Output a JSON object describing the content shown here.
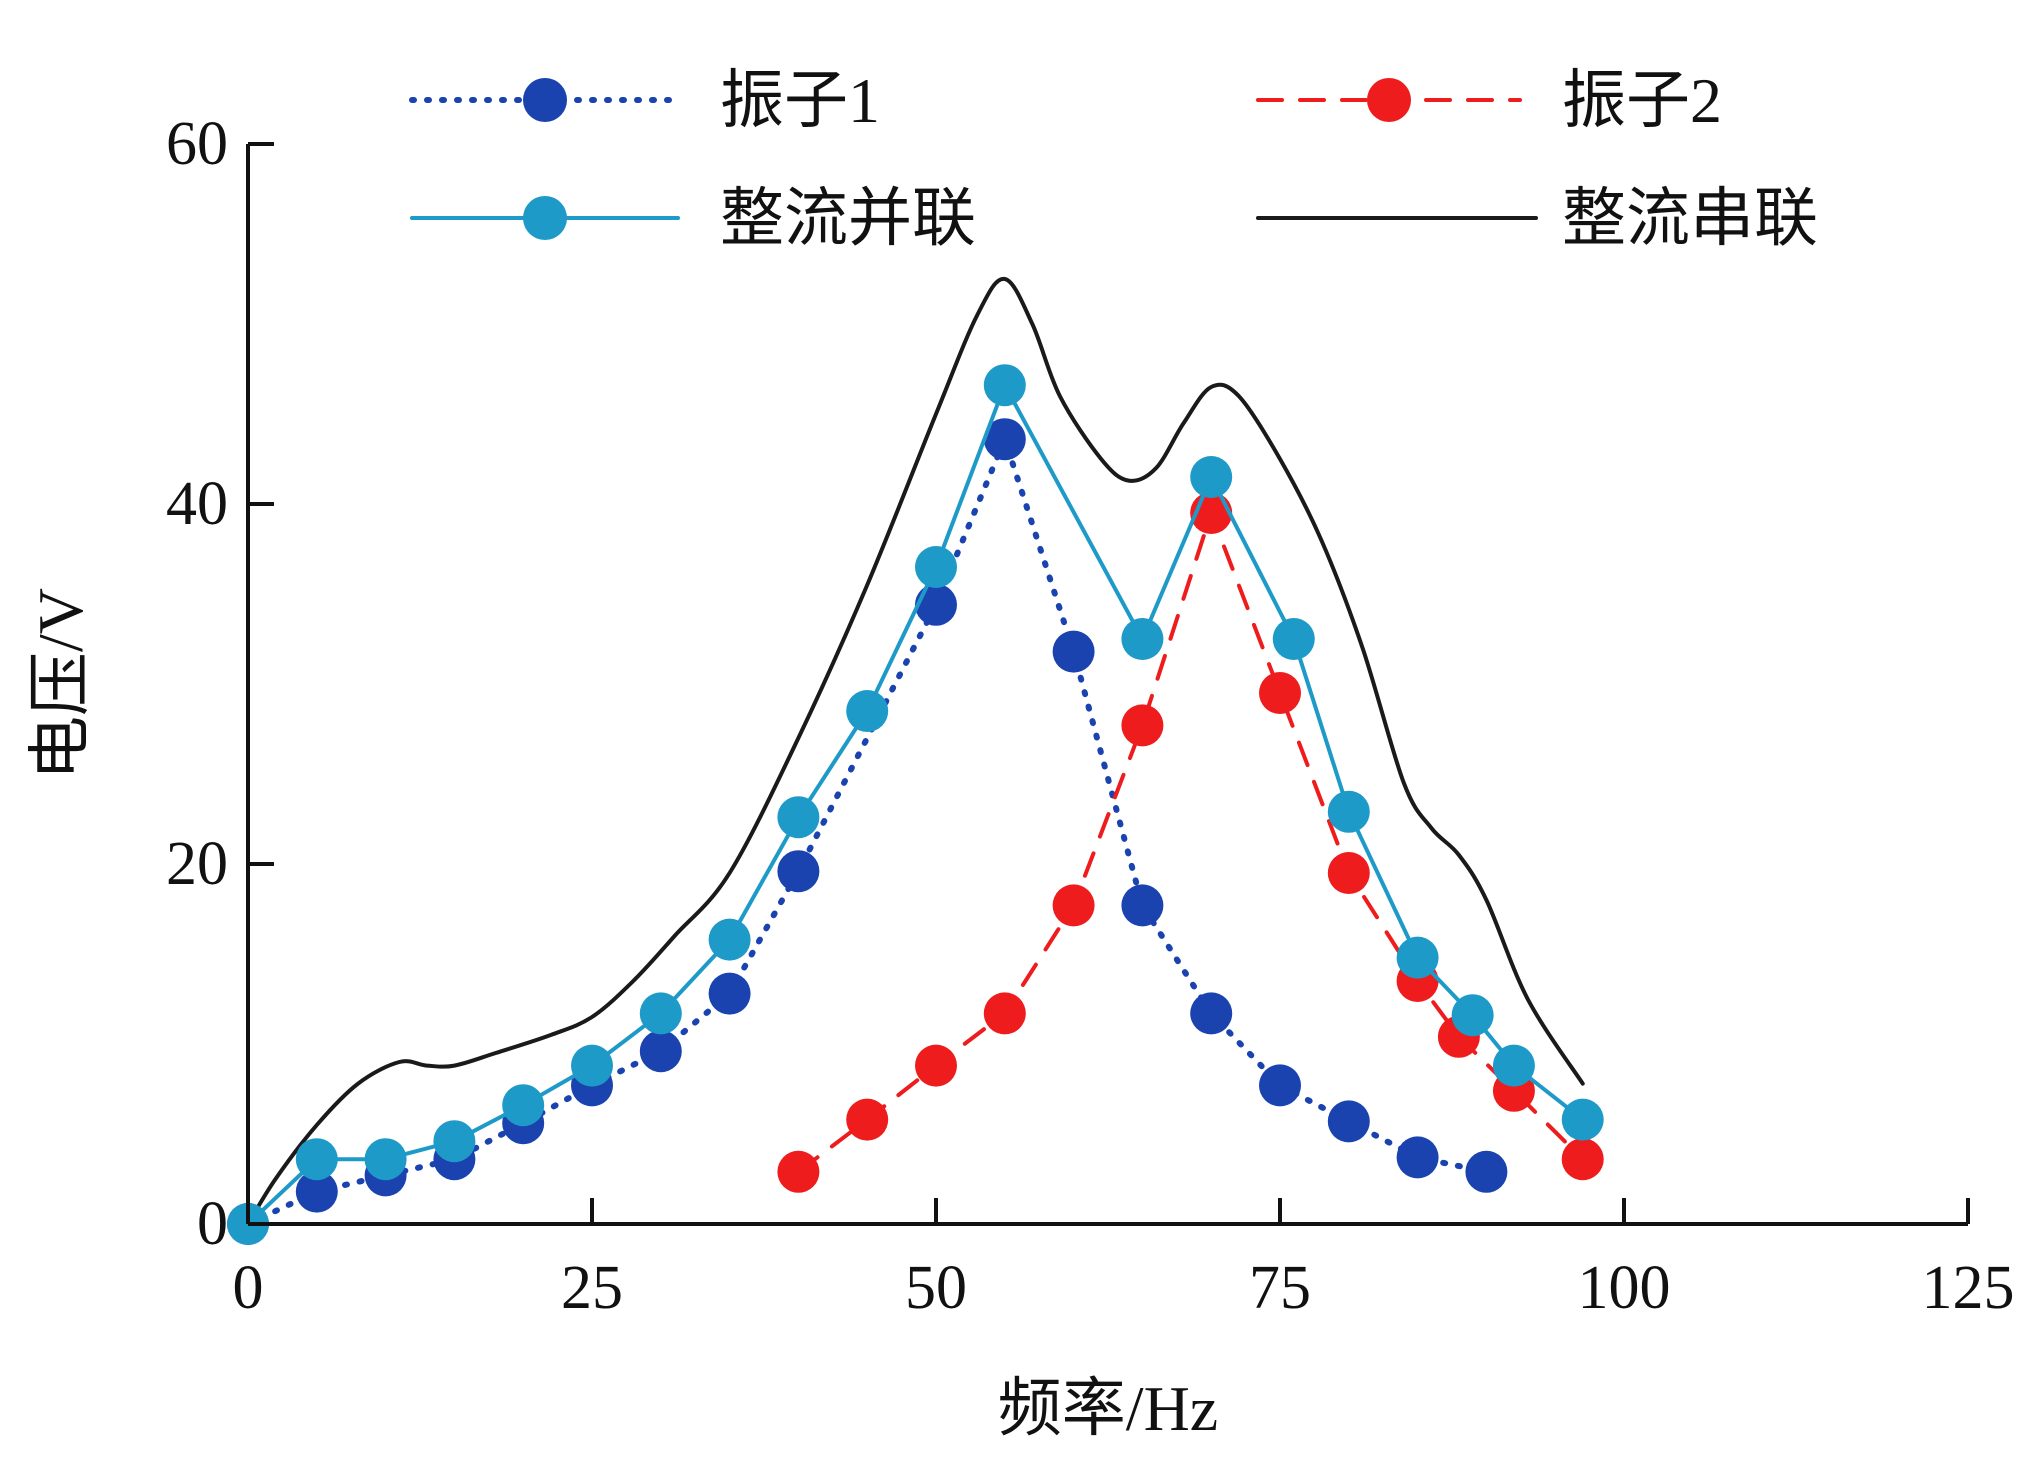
{
  "chart_data": {
    "type": "line",
    "xlabel": "频率/Hz",
    "ylabel": "电压/V",
    "xlim": [
      0,
      125
    ],
    "ylim": [
      0,
      60
    ],
    "xticks": [
      0,
      25,
      50,
      75,
      100,
      125
    ],
    "yticks": [
      0,
      20,
      40,
      60
    ],
    "grid": false,
    "legend_position": "top",
    "series": [
      {
        "name": "振子1",
        "style": "dotted",
        "marker": true,
        "color": "#1a43b0",
        "x": [
          0,
          5,
          10,
          15,
          20,
          25,
          30,
          35,
          40,
          50,
          55,
          60,
          65,
          70,
          75,
          80,
          85,
          90
        ],
        "y": [
          0,
          1.8,
          2.7,
          3.6,
          5.6,
          7.7,
          9.6,
          12.8,
          19.6,
          34.4,
          43.6,
          31.8,
          17.7,
          11.7,
          7.7,
          5.7,
          3.7,
          2.9
        ]
      },
      {
        "name": "振子2",
        "style": "dashed",
        "marker": true,
        "color": "#ee1c1c",
        "x": [
          40,
          45,
          50,
          55,
          60,
          65,
          70,
          75,
          80,
          85,
          88,
          92,
          97
        ],
        "y": [
          2.9,
          5.8,
          8.8,
          11.7,
          17.7,
          27.7,
          39.5,
          29.5,
          19.5,
          13.5,
          10.4,
          7.4,
          3.6
        ]
      },
      {
        "name": "整流并联",
        "style": "solid",
        "marker": true,
        "color": "#1e9ac8",
        "x": [
          0,
          5,
          10,
          15,
          20,
          25,
          30,
          35,
          40,
          45,
          50,
          55,
          65,
          70,
          76,
          80,
          85,
          89,
          92,
          97
        ],
        "y": [
          0,
          3.6,
          3.6,
          4.6,
          6.6,
          8.8,
          11.7,
          15.8,
          22.6,
          28.5,
          36.5,
          46.6,
          32.5,
          41.5,
          32.5,
          22.9,
          14.8,
          11.6,
          8.8,
          5.8
        ]
      },
      {
        "name": "整流串联",
        "style": "solid",
        "marker": false,
        "color": "#1a1a1a",
        "x": [
          0,
          2,
          5,
          8,
          11,
          13,
          15,
          18,
          22,
          25,
          28,
          31,
          35,
          40,
          45,
          50,
          53,
          55,
          57,
          59,
          62,
          64,
          66,
          68,
          70,
          72,
          75,
          78,
          81,
          84,
          86,
          88,
          90,
          93,
          97
        ],
        "y": [
          0,
          2.5,
          5.5,
          7.8,
          9.0,
          8.8,
          8.8,
          9.5,
          10.5,
          11.5,
          13.5,
          16.0,
          19.5,
          27.0,
          35.5,
          45.0,
          50.5,
          52.5,
          50.0,
          46.0,
          42.5,
          41.3,
          42.0,
          44.5,
          46.5,
          46.0,
          42.5,
          38.0,
          32.0,
          24.5,
          22.0,
          20.5,
          18.0,
          12.5,
          7.8
        ]
      }
    ]
  }
}
